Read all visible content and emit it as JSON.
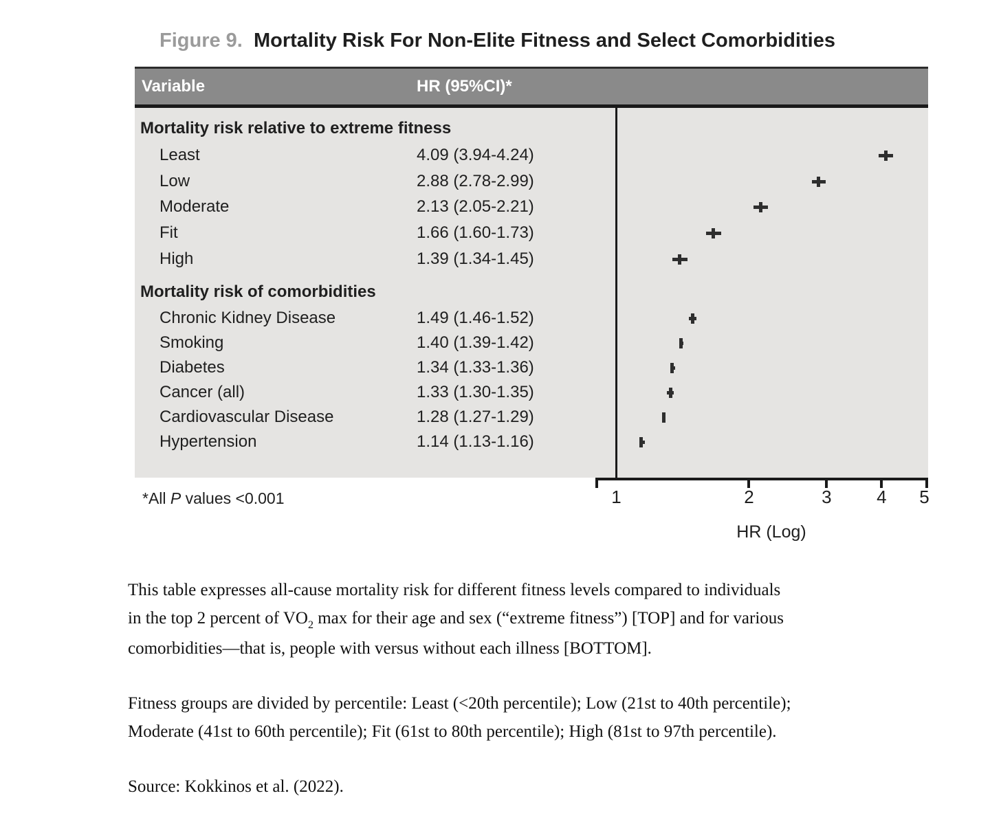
{
  "title": {
    "prefix": "Figure 9.",
    "main": "Mortality Risk For Non-Elite Fitness and Select Comorbidities"
  },
  "table": {
    "col1": "Variable",
    "col2": "HR (95%CI)*"
  },
  "chart_data": {
    "type": "forest",
    "x_axis": {
      "label": "HR (Log)",
      "scale": "log",
      "ticks": [
        1,
        2,
        3,
        4,
        5
      ],
      "range": [
        1,
        5
      ]
    },
    "reference_line": 1,
    "legend": "none",
    "grid": false,
    "groups": [
      {
        "header": "Mortality risk relative to extreme fitness",
        "rows": [
          {
            "label": "Least",
            "hr": 4.09,
            "ci_low": 3.94,
            "ci_high": 4.24,
            "text": "4.09 (3.94-4.24)"
          },
          {
            "label": "Low",
            "hr": 2.88,
            "ci_low": 2.78,
            "ci_high": 2.99,
            "text": "2.88 (2.78-2.99)"
          },
          {
            "label": "Moderate",
            "hr": 2.13,
            "ci_low": 2.05,
            "ci_high": 2.21,
            "text": "2.13 (2.05-2.21)"
          },
          {
            "label": "Fit",
            "hr": 1.66,
            "ci_low": 1.6,
            "ci_high": 1.73,
            "text": "1.66 (1.60-1.73)"
          },
          {
            "label": "High",
            "hr": 1.39,
            "ci_low": 1.34,
            "ci_high": 1.45,
            "text": "1.39 (1.34-1.45)"
          }
        ]
      },
      {
        "header": "Mortality risk of comorbidities",
        "rows": [
          {
            "label": "Chronic Kidney Disease",
            "hr": 1.49,
            "ci_low": 1.46,
            "ci_high": 1.52,
            "text": "1.49 (1.46-1.52)"
          },
          {
            "label": "Smoking",
            "hr": 1.4,
            "ci_low": 1.39,
            "ci_high": 1.42,
            "text": "1.40 (1.39-1.42)"
          },
          {
            "label": "Diabetes",
            "hr": 1.34,
            "ci_low": 1.33,
            "ci_high": 1.36,
            "text": "1.34 (1.33-1.36)"
          },
          {
            "label": "Cancer (all)",
            "hr": 1.33,
            "ci_low": 1.3,
            "ci_high": 1.35,
            "text": "1.33 (1.30-1.35)"
          },
          {
            "label": "Cardiovascular Disease",
            "hr": 1.28,
            "ci_low": 1.27,
            "ci_high": 1.29,
            "text": "1.28 (1.27-1.29)"
          },
          {
            "label": "Hypertension",
            "hr": 1.14,
            "ci_low": 1.13,
            "ci_high": 1.16,
            "text": "1.14 (1.13-1.16)"
          }
        ]
      }
    ],
    "footnote": {
      "pre": "*All ",
      "italic": "P",
      "post": " values <0.001"
    }
  },
  "caption": {
    "p1_line1": "This table expresses all-cause mortality risk for different fitness levels compared to individuals",
    "p1_line2_pre": "in the top 2 percent of VO",
    "p1_line2_sub": "2",
    "p1_line2_post": " max for their age and sex (“extreme fitness”) [TOP] and for various",
    "p1_line3": "comorbidities—that is, people with versus without each illness [BOTTOM].",
    "p2_line1": "Fitness groups are divided by percentile: Least (<20th percentile); Low (21st to 40th percentile);",
    "p2_line2": "Moderate (41st to 60th percentile); Fit (61st to 80th percentile); High (81st to 97th percentile).",
    "source": "Source: Kokkinos et al. (2022)."
  },
  "colors": {
    "header_bg": "#8a8a8a",
    "panel_bg": "#e5e4e2",
    "text": "#1f1f1f",
    "title_prefix": "#9b9b9b",
    "marker": "#2e2e2e",
    "line": "#1a1a1a"
  }
}
